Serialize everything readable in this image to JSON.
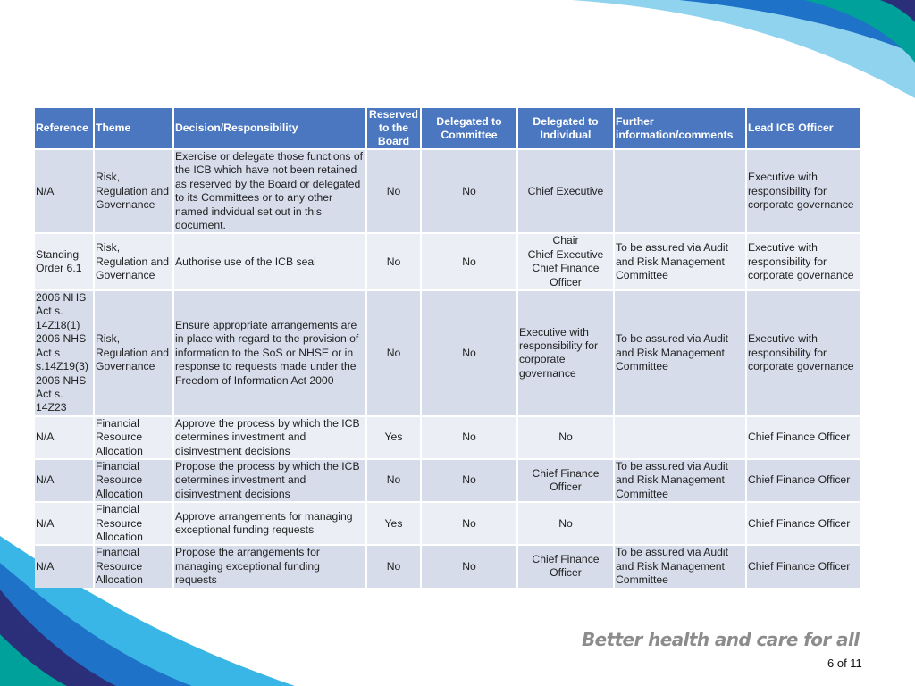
{
  "table": {
    "headers": {
      "reference": "Reference",
      "theme": "Theme",
      "decision": "Decision/Responsibility",
      "reserved": "Reserved to the Board",
      "committee": "Delegated to Committee",
      "individual": "Delegated to Individual",
      "further": "Further information/comments",
      "officer": "Lead ICB Officer"
    },
    "rows": [
      {
        "reference": "N/A",
        "theme": "Risk, Regulation and Governance",
        "decision": "Exercise or delegate those functions of the ICB which have not been retained as reserved by the Board or delegated to its Committees or to any other named indvidual set out in this document.",
        "reserved": "No",
        "committee": "No",
        "individual": "Chief Executive",
        "further": "",
        "officer": "Executive with responsibility for corporate governance"
      },
      {
        "reference": "Standing Order 6.1",
        "theme": "Risk, Regulation and Governance",
        "decision": "Authorise use of the ICB seal",
        "reserved": "No",
        "committee": "No",
        "individual": "Chair\nChief Executive\nChief Finance Officer",
        "further": "To be assured via Audit and Risk Management Committee",
        "officer": "Executive with responsibility for corporate governance"
      },
      {
        "reference": "2006 NHS Act s. 14Z18(1)\n2006 NHS Act s s.14Z19(3)\n2006 NHS Act s. 14Z23",
        "theme": "Risk, Regulation and Governance",
        "decision": "Ensure appropriate arrangements are in place with regard to the provision of information to the SoS or NHSE or in response to requests made under the Freedom of Information Act 2000",
        "reserved": "No",
        "committee": "No",
        "individual": "Executive with responsibility for corporate governance",
        "further": "To be assured via Audit and Risk Management Committee",
        "officer": "Executive with responsibility for corporate governance"
      },
      {
        "reference": "N/A",
        "theme": "Financial Resource Allocation",
        "decision": "Approve the process by which the ICB determines investment and disinvestment decisions",
        "reserved": "Yes",
        "committee": "No",
        "individual": "No",
        "further": "",
        "officer": "Chief Finance Officer"
      },
      {
        "reference": "N/A",
        "theme": "Financial Resource Allocation",
        "decision": "Propose the process by which the ICB determines investment and disinvestment decisions",
        "reserved": "No",
        "committee": "No",
        "individual": "Chief Finance Officer",
        "further": "To be assured via Audit and Risk Management Committee",
        "officer": "Chief Finance Officer"
      },
      {
        "reference": "N/A",
        "theme": "Financial Resource Allocation",
        "decision": "Approve arrangements for managing exceptional funding requests",
        "reserved": "Yes",
        "committee": "No",
        "individual": "No",
        "further": "",
        "officer": "Chief Finance Officer"
      },
      {
        "reference": "N/A",
        "theme": "Financial Resource Allocation",
        "decision": "Propose the arrangements for managing exceptional funding requests",
        "reserved": "No",
        "committee": "No",
        "individual": "Chief Finance Officer",
        "further": "To be assured via Audit and Risk Management Committee",
        "officer": "Chief Finance Officer"
      }
    ]
  },
  "footer": {
    "slogan": "Better health and care for all",
    "page_number": "6 of 11"
  },
  "colors": {
    "header_blue": "#4a77c0",
    "row_dark": "#d6dcea",
    "row_light": "#ebeef5",
    "wave_blue": "#1e72c8",
    "wave_teal": "#00a19a",
    "wave_cyan": "#3ab6e6",
    "wave_navy": "#2b2f7a"
  }
}
